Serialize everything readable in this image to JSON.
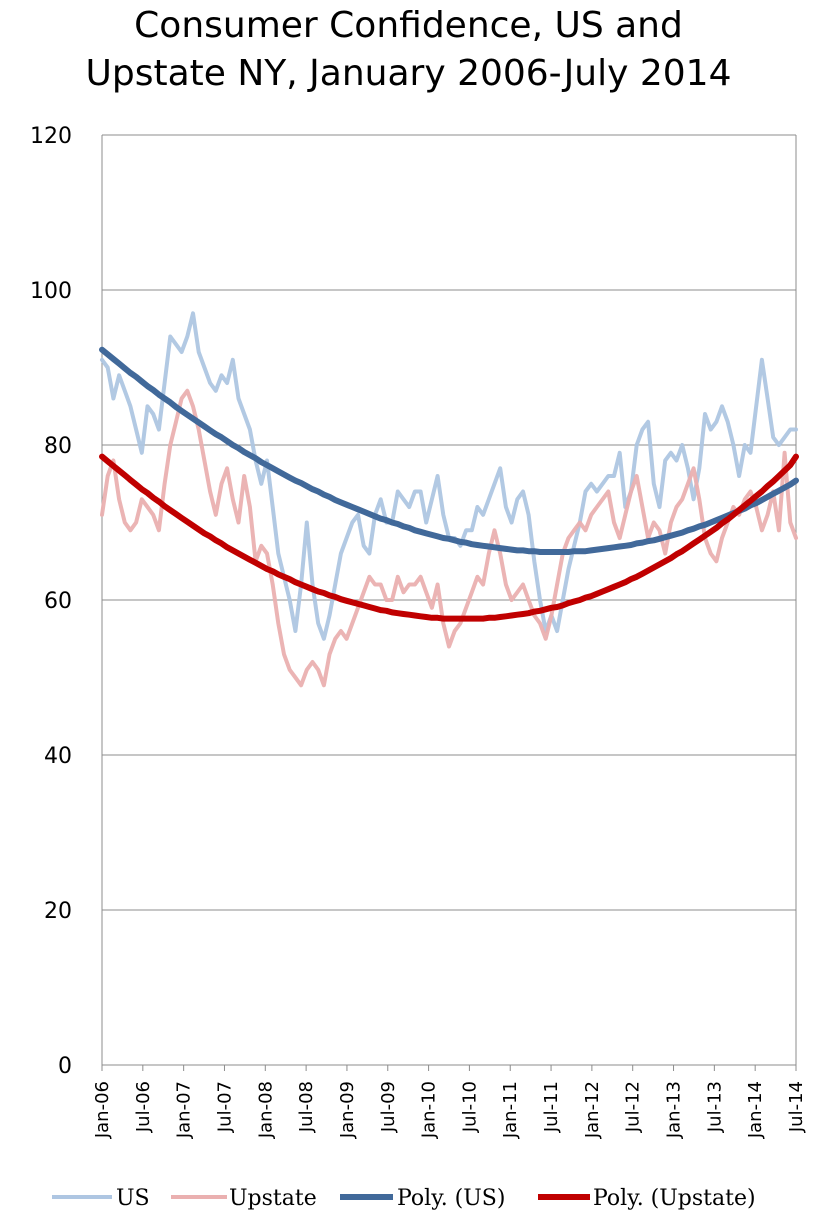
{
  "chart_data": {
    "type": "line",
    "title_line1": "Consumer Confidence, US and",
    "title_line2": "Upstate NY, January 2006-July 2014",
    "ylim": [
      0,
      120
    ],
    "yticks": [
      0,
      20,
      40,
      60,
      80,
      100,
      120
    ],
    "x_tick_labels": [
      "Jan-06",
      "Jul-06",
      "Jan-07",
      "Jul-07",
      "Jan-08",
      "Jul-08",
      "Jan-09",
      "Jul-09",
      "Jan-10",
      "Jul-10",
      "Jan-11",
      "Jul-11",
      "Jan-12",
      "Jul-12",
      "Jan-13",
      "Jul-13",
      "Jan-14",
      "Jul-14"
    ],
    "grid": true,
    "legend_position": "bottom",
    "colors": {
      "us": "#aec6e2",
      "upstate": "#eab0b0",
      "poly_us": "#41699a",
      "poly_upstate": "#c00000"
    },
    "series": [
      {
        "name": "US",
        "values": [
          91,
          90,
          86,
          89,
          87,
          85,
          82,
          79,
          85,
          84,
          82,
          88,
          94,
          93,
          92,
          94,
          97,
          92,
          90,
          88,
          87,
          89,
          88,
          91,
          86,
          84,
          82,
          78,
          75,
          78,
          72,
          66,
          63,
          60,
          56,
          62,
          70,
          62,
          57,
          55,
          58,
          62,
          66,
          68,
          70,
          71,
          67,
          66,
          71,
          73,
          70,
          70,
          74,
          73,
          72,
          74,
          74,
          70,
          73,
          76,
          71,
          68,
          68,
          67,
          69,
          69,
          72,
          71,
          73,
          75,
          77,
          72,
          70,
          73,
          74,
          71,
          65,
          60,
          56,
          58,
          56,
          60,
          64,
          67,
          70,
          74,
          75,
          74,
          75,
          76,
          76,
          79,
          72,
          74,
          80,
          82,
          83,
          75,
          72,
          78,
          79,
          78,
          80,
          77,
          73,
          77,
          84,
          82,
          83,
          85,
          83,
          80,
          76,
          80,
          79,
          85,
          91,
          86,
          81,
          80,
          81,
          82,
          82
        ]
      },
      {
        "name": "Upstate",
        "values": [
          71,
          76,
          78,
          73,
          70,
          69,
          70,
          73,
          72,
          71,
          69,
          75,
          80,
          83,
          86,
          87,
          85,
          82,
          78,
          74,
          71,
          75,
          77,
          73,
          70,
          76,
          72,
          65,
          67,
          66,
          62,
          57,
          53,
          51,
          50,
          49,
          51,
          52,
          51,
          49,
          53,
          55,
          56,
          55,
          57,
          59,
          61,
          63,
          62,
          62,
          60,
          60,
          63,
          61,
          62,
          62,
          63,
          61,
          59,
          62,
          57,
          54,
          56,
          57,
          59,
          61,
          63,
          62,
          66,
          69,
          66,
          62,
          60,
          61,
          62,
          60,
          58,
          57,
          55,
          58,
          62,
          66,
          68,
          69,
          70,
          69,
          71,
          72,
          73,
          74,
          70,
          68,
          71,
          74,
          76,
          72,
          68,
          70,
          69,
          66,
          70,
          72,
          73,
          75,
          77,
          73,
          68,
          66,
          65,
          68,
          70,
          72,
          71,
          73,
          74,
          72,
          69,
          71,
          74,
          69,
          79,
          70,
          68
        ]
      },
      {
        "name": "Poly. (US)",
        "fit": "polynomial",
        "values": [
          92.3,
          91.7,
          91.1,
          90.5,
          89.9,
          89.3,
          88.8,
          88.2,
          87.6,
          87.1,
          86.5,
          86.0,
          85.5,
          84.9,
          84.4,
          83.9,
          83.4,
          82.9,
          82.4,
          81.9,
          81.4,
          81.0,
          80.5,
          80.0,
          79.6,
          79.1,
          78.7,
          78.3,
          77.8,
          77.4,
          77.0,
          76.6,
          76.2,
          75.8,
          75.4,
          75.1,
          74.7,
          74.3,
          74.0,
          73.6,
          73.3,
          72.9,
          72.6,
          72.3,
          72.0,
          71.7,
          71.4,
          71.1,
          70.8,
          70.5,
          70.3,
          70.0,
          69.8,
          69.5,
          69.3,
          69.0,
          68.8,
          68.6,
          68.4,
          68.2,
          68.0,
          67.9,
          67.7,
          67.5,
          67.4,
          67.2,
          67.1,
          67.0,
          66.9,
          66.8,
          66.7,
          66.6,
          66.5,
          66.4,
          66.4,
          66.3,
          66.3,
          66.2,
          66.2,
          66.2,
          66.2,
          66.2,
          66.2,
          66.3,
          66.3,
          66.3,
          66.4,
          66.5,
          66.6,
          66.7,
          66.8,
          66.9,
          67.0,
          67.1,
          67.3,
          67.4,
          67.6,
          67.7,
          67.9,
          68.1,
          68.3,
          68.5,
          68.7,
          69.0,
          69.2,
          69.5,
          69.7,
          70.0,
          70.3,
          70.6,
          70.9,
          71.2,
          71.5,
          71.8,
          72.2,
          72.5,
          72.9,
          73.3,
          73.7,
          74.1,
          74.5,
          74.9,
          75.4
        ]
      },
      {
        "name": "Poly. (Upstate)",
        "fit": "polynomial",
        "values": [
          78.5,
          77.9,
          77.3,
          76.7,
          76.1,
          75.5,
          74.9,
          74.3,
          73.8,
          73.2,
          72.7,
          72.1,
          71.6,
          71.1,
          70.6,
          70.1,
          69.6,
          69.1,
          68.6,
          68.2,
          67.7,
          67.3,
          66.8,
          66.4,
          66.0,
          65.6,
          65.2,
          64.8,
          64.4,
          64.0,
          63.7,
          63.3,
          63.0,
          62.7,
          62.3,
          62.0,
          61.7,
          61.4,
          61.1,
          60.9,
          60.6,
          60.4,
          60.1,
          59.9,
          59.7,
          59.5,
          59.3,
          59.1,
          58.9,
          58.7,
          58.6,
          58.4,
          58.3,
          58.2,
          58.1,
          58.0,
          57.9,
          57.8,
          57.7,
          57.7,
          57.6,
          57.6,
          57.6,
          57.6,
          57.6,
          57.6,
          57.6,
          57.6,
          57.7,
          57.7,
          57.8,
          57.9,
          58.0,
          58.1,
          58.2,
          58.3,
          58.5,
          58.6,
          58.8,
          59.0,
          59.1,
          59.3,
          59.6,
          59.8,
          60.0,
          60.3,
          60.5,
          60.8,
          61.1,
          61.4,
          61.7,
          62.0,
          62.3,
          62.7,
          63.0,
          63.4,
          63.8,
          64.2,
          64.6,
          65.0,
          65.4,
          65.9,
          66.3,
          66.8,
          67.3,
          67.8,
          68.3,
          68.8,
          69.3,
          69.9,
          70.4,
          71.0,
          71.6,
          72.2,
          72.8,
          73.4,
          74.0,
          74.7,
          75.3,
          76.0,
          76.7,
          77.4,
          78.5
        ]
      }
    ],
    "legend": [
      "US",
      "Upstate",
      "Poly. (US)",
      "Poly. (Upstate)"
    ]
  }
}
